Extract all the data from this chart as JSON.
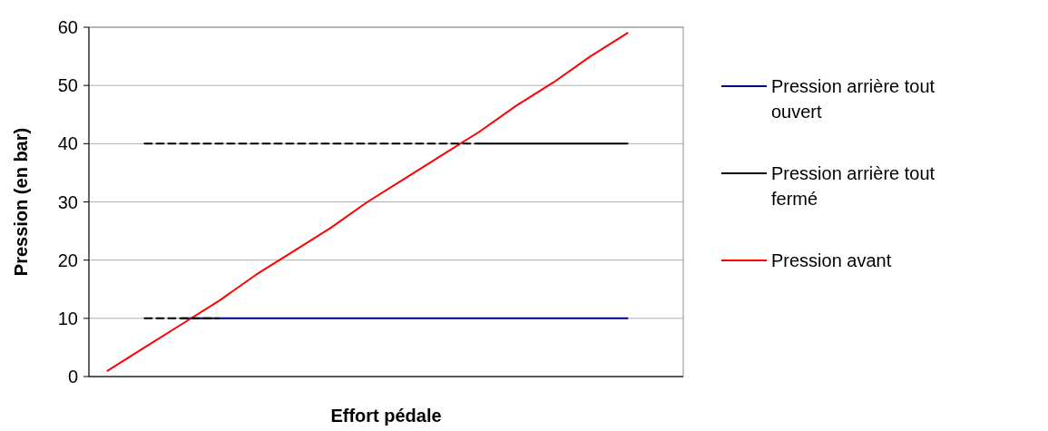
{
  "chart_data": {
    "type": "line",
    "xlabel": "Effort pédale",
    "ylabel": "Pression (en bar)",
    "categories": [
      null,
      null,
      null,
      null,
      null,
      null,
      null,
      null,
      null,
      null,
      null,
      null,
      null,
      null,
      null,
      null
    ],
    "ylim": [
      0,
      60
    ],
    "yticks": [
      0,
      10,
      20,
      30,
      40,
      50,
      60
    ],
    "grid": "y",
    "legend": "right",
    "marker": "none",
    "series": [
      {
        "name": "Pression arrière tout ouvert",
        "color": "#000080",
        "values": [
          null,
          null,
          10,
          10,
          10,
          10,
          10,
          10,
          10,
          10,
          10,
          10,
          10,
          10,
          10,
          null
        ]
      },
      {
        "name": "Pression arrière tout fermé",
        "color": "#000000",
        "values": [
          null,
          null,
          null,
          null,
          null,
          null,
          null,
          null,
          null,
          null,
          40,
          40,
          40,
          40,
          40,
          null
        ]
      },
      {
        "name": "Pression avant",
        "color": "#ff0000",
        "values": [
          1,
          5,
          9,
          13,
          17.5,
          21.5,
          25.5,
          30,
          34,
          38,
          42,
          46.5,
          50.5,
          55,
          59,
          null
        ]
      },
      {
        "color": "#000000",
        "line_style": "dashed",
        "values": [
          null,
          10,
          10,
          10,
          null,
          null,
          null,
          null,
          null,
          null,
          null,
          null,
          null,
          null,
          null,
          null
        ]
      },
      {
        "color": "#000000",
        "line_style": "dashed",
        "values": [
          null,
          40,
          40,
          40,
          40,
          40,
          40,
          40,
          40,
          40,
          40,
          null,
          null,
          null,
          null,
          null
        ]
      }
    ]
  }
}
